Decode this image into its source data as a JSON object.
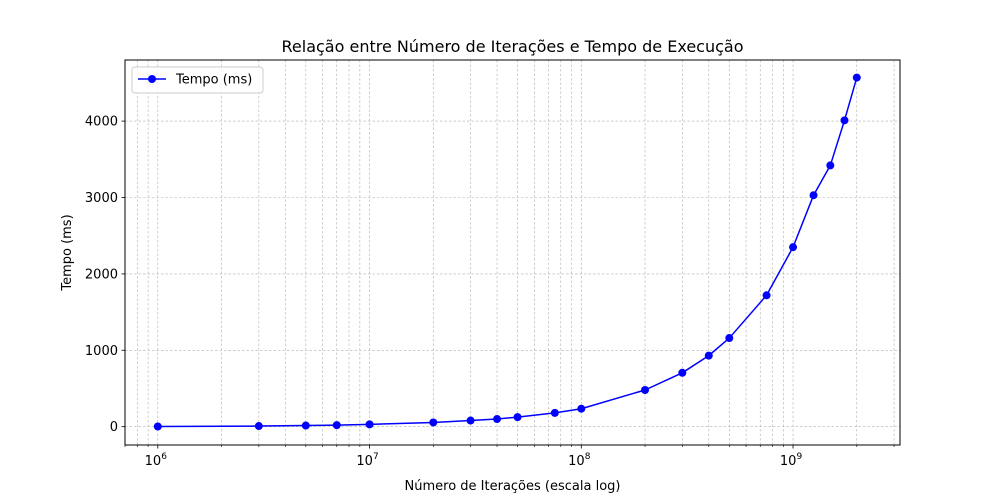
{
  "chart_data": {
    "type": "line",
    "title": "Relação entre Número de Iterações e Tempo de Execução",
    "xlabel": "Número de Iterações (escala log)",
    "ylabel": "Tempo (ms)",
    "x_scale": "log",
    "xlim": [
      700000,
      3200000000
    ],
    "ylim": [
      -240,
      4800
    ],
    "grid": true,
    "legend": {
      "position": "top-left"
    },
    "x_ticks": [
      {
        "value": 1000000,
        "label": "10",
        "exp": "6"
      },
      {
        "value": 10000000,
        "label": "10",
        "exp": "7"
      },
      {
        "value": 100000000,
        "label": "10",
        "exp": "8"
      },
      {
        "value": 1000000000,
        "label": "10",
        "exp": "9"
      }
    ],
    "y_ticks": [
      {
        "value": 0,
        "label": "0"
      },
      {
        "value": 1000,
        "label": "1000"
      },
      {
        "value": 2000,
        "label": "2000"
      },
      {
        "value": 3000,
        "label": "3000"
      },
      {
        "value": 4000,
        "label": "4000"
      }
    ],
    "series": [
      {
        "name": "Tempo (ms)",
        "color": "#0000ff",
        "x": [
          1000000,
          3000000,
          5000000,
          7000000,
          10000000,
          20000000,
          30000000,
          40000000,
          50000000,
          75000000,
          100000000,
          200000000,
          300000000,
          400000000,
          500000000,
          750000000,
          1000000000,
          1250000000,
          1500000000,
          1750000000,
          2000000000
        ],
        "y": [
          2,
          8,
          15,
          20,
          30,
          55,
          80,
          100,
          125,
          180,
          235,
          480,
          705,
          930,
          1160,
          1720,
          2350,
          3030,
          3420,
          4010,
          4570
        ]
      }
    ]
  }
}
